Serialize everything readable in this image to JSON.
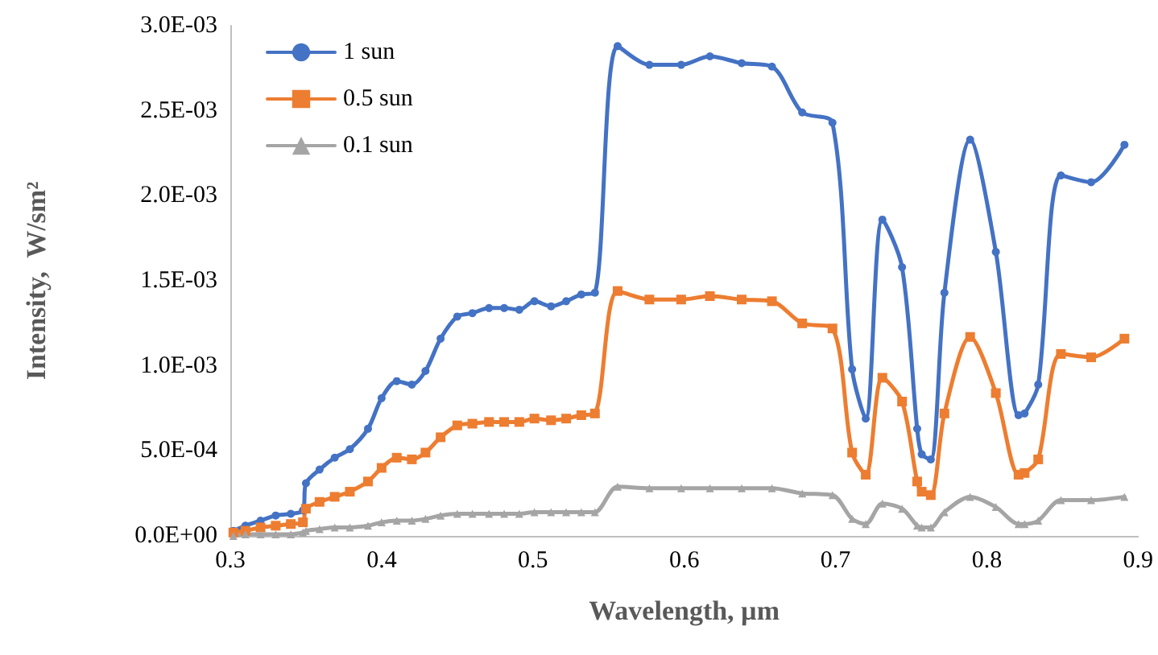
{
  "chart_data": {
    "type": "line",
    "xlabel": "Wavelength, µm",
    "ylabel": "Intensity,  W/sm²",
    "x": [
      0.302,
      0.31,
      0.32,
      0.33,
      0.34,
      0.348,
      0.35,
      0.359,
      0.369,
      0.379,
      0.391,
      0.4,
      0.41,
      0.42,
      0.429,
      0.439,
      0.45,
      0.46,
      0.471,
      0.481,
      0.491,
      0.501,
      0.512,
      0.522,
      0.532,
      0.541,
      0.556,
      0.577,
      0.598,
      0.617,
      0.638,
      0.658,
      0.678,
      0.698,
      0.711,
      0.72,
      0.731,
      0.744,
      0.754,
      0.757,
      0.763,
      0.772,
      0.789,
      0.806,
      0.821,
      0.825,
      0.834,
      0.849,
      0.869,
      0.891
    ],
    "series": [
      {
        "name": "1 sun",
        "color": "#4472c4",
        "marker": "circle",
        "values": [
          3e-05,
          6e-05,
          9e-05,
          0.00012,
          0.00013,
          0.00015,
          0.00031,
          0.00039,
          0.00046,
          0.00051,
          0.00063,
          0.00081,
          0.00091,
          0.00089,
          0.00097,
          0.00116,
          0.00129,
          0.00131,
          0.00134,
          0.00134,
          0.00133,
          0.00138,
          0.00135,
          0.00138,
          0.00142,
          0.00143,
          0.00288,
          0.00277,
          0.00277,
          0.00282,
          0.00278,
          0.00276,
          0.00249,
          0.00243,
          0.00098,
          0.00069,
          0.00186,
          0.00158,
          0.00063,
          0.00048,
          0.00045,
          0.00143,
          0.00233,
          0.00167,
          0.00071,
          0.00072,
          0.00089,
          0.00212,
          0.00208,
          0.0023
        ]
      },
      {
        "name": "0.5 sun",
        "color": "#ed7d31",
        "marker": "square",
        "values": [
          2e-05,
          3e-05,
          5e-05,
          6e-05,
          7e-05,
          8e-05,
          0.00016,
          0.0002,
          0.00023,
          0.00026,
          0.00032,
          0.0004,
          0.00046,
          0.00045,
          0.00049,
          0.00058,
          0.00065,
          0.00066,
          0.00067,
          0.00067,
          0.00067,
          0.00069,
          0.00068,
          0.00069,
          0.00071,
          0.00072,
          0.00144,
          0.00139,
          0.00139,
          0.00141,
          0.00139,
          0.00138,
          0.00125,
          0.00122,
          0.00049,
          0.00036,
          0.00093,
          0.00079,
          0.00032,
          0.00026,
          0.00024,
          0.00072,
          0.00117,
          0.00084,
          0.00036,
          0.00037,
          0.00045,
          0.00107,
          0.00105,
          0.00116
        ]
      },
      {
        "name": "0.1 sun",
        "color": "#a5a5a5",
        "marker": "triangle",
        "values": [
          0,
          1e-05,
          1e-05,
          1e-05,
          1e-05,
          2e-05,
          3e-05,
          4e-05,
          5e-05,
          5e-05,
          6e-05,
          8e-05,
          9e-05,
          9e-05,
          0.0001,
          0.00012,
          0.00013,
          0.00013,
          0.00013,
          0.00013,
          0.00013,
          0.00014,
          0.00014,
          0.00014,
          0.00014,
          0.00014,
          0.00029,
          0.00028,
          0.00028,
          0.00028,
          0.00028,
          0.00028,
          0.00025,
          0.00024,
          0.0001,
          7e-05,
          0.00019,
          0.00016,
          6e-05,
          5e-05,
          5e-05,
          0.00014,
          0.00023,
          0.00017,
          7e-05,
          7e-05,
          9e-05,
          0.00021,
          0.00021,
          0.00023
        ]
      }
    ],
    "xlim": [
      0.3,
      0.9
    ],
    "xticks": [
      0.3,
      0.4,
      0.5,
      0.6,
      0.7,
      0.8,
      0.9
    ],
    "ylim": [
      0,
      0.003
    ],
    "yticks": [
      {
        "value": 0,
        "label": "0.0E+00"
      },
      {
        "value": 0.0005,
        "label": "5.0E-04"
      },
      {
        "value": 0.001,
        "label": "1.0E-03"
      },
      {
        "value": 0.0015,
        "label": "1.5E-03"
      },
      {
        "value": 0.002,
        "label": "2.0E-03"
      },
      {
        "value": 0.0025,
        "label": "2.5E-03"
      },
      {
        "value": 0.003,
        "label": "3.0E-03"
      }
    ],
    "grid": false,
    "legend": "top left",
    "line_style": "solid"
  }
}
